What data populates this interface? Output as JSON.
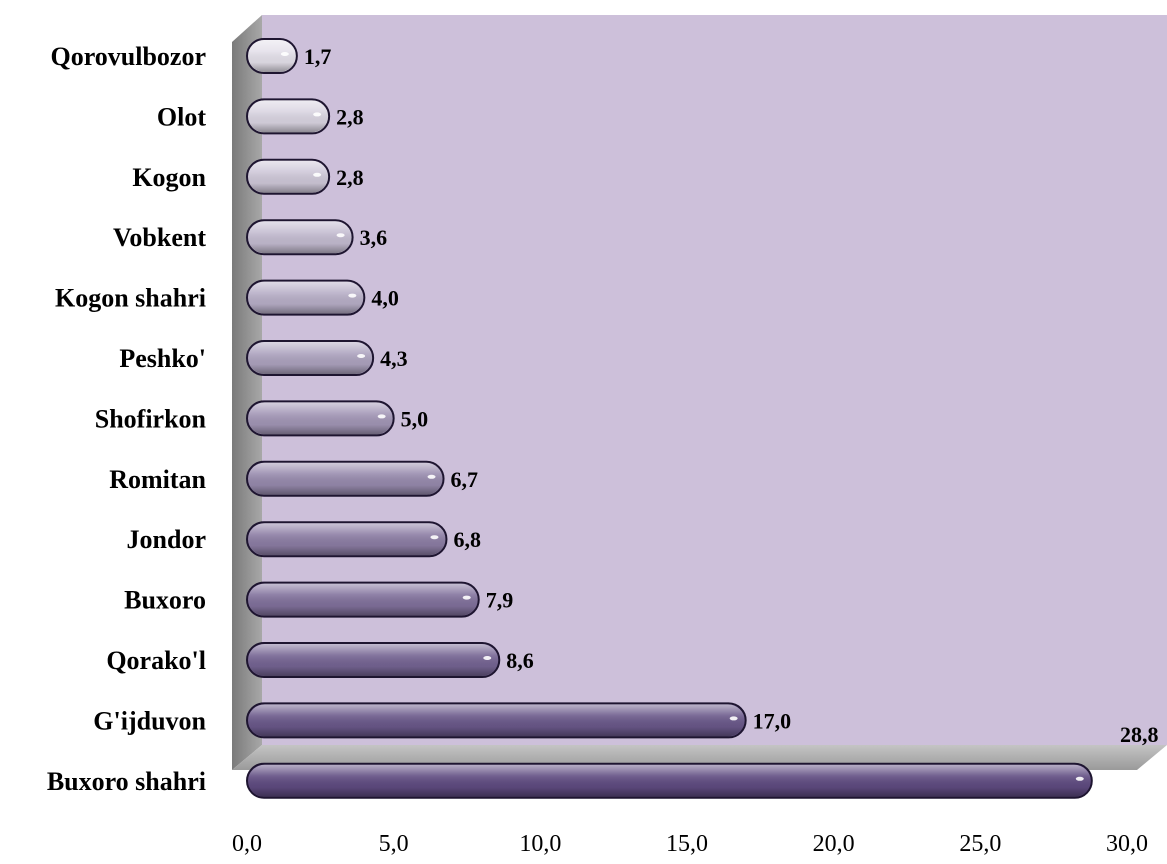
{
  "chart_data": {
    "type": "bar",
    "orientation": "horizontal",
    "categories": [
      "Qorovulbozor",
      "Olot",
      "Kogon",
      "Vobkent",
      "Kogon shahri",
      "Peshko'",
      "Shofirkon",
      "Romitan",
      "Jondor",
      "Buxoro",
      "Qorako'l",
      "G'ijduvon",
      "Buxoro shahri"
    ],
    "values": [
      1.7,
      2.8,
      2.8,
      3.6,
      4.0,
      4.3,
      5.0,
      6.7,
      6.8,
      7.9,
      8.6,
      17.0,
      28.8
    ],
    "value_labels": [
      "1,7",
      "2,8",
      "2,8",
      "3,6",
      "4,0",
      "4,3",
      "5,0",
      "6,7",
      "6,8",
      "7,9",
      "8,6",
      "17,0",
      "28,8"
    ],
    "xlim": [
      0,
      30
    ],
    "ticks": [
      0,
      5,
      10,
      15,
      20,
      25,
      30
    ],
    "tick_labels": [
      "0,0",
      "5,0",
      "10,0",
      "15,0",
      "20,0",
      "25,0",
      "30,0"
    ],
    "title": "",
    "xlabel": "",
    "ylabel": "",
    "grid": false,
    "colors": {
      "plot_background": "#cdc0da",
      "bar_light": "#e4e0ea",
      "bar_dark": "#5e4a80",
      "wall_side": "#8f8f8f",
      "floor": "#b4b4b4"
    }
  }
}
